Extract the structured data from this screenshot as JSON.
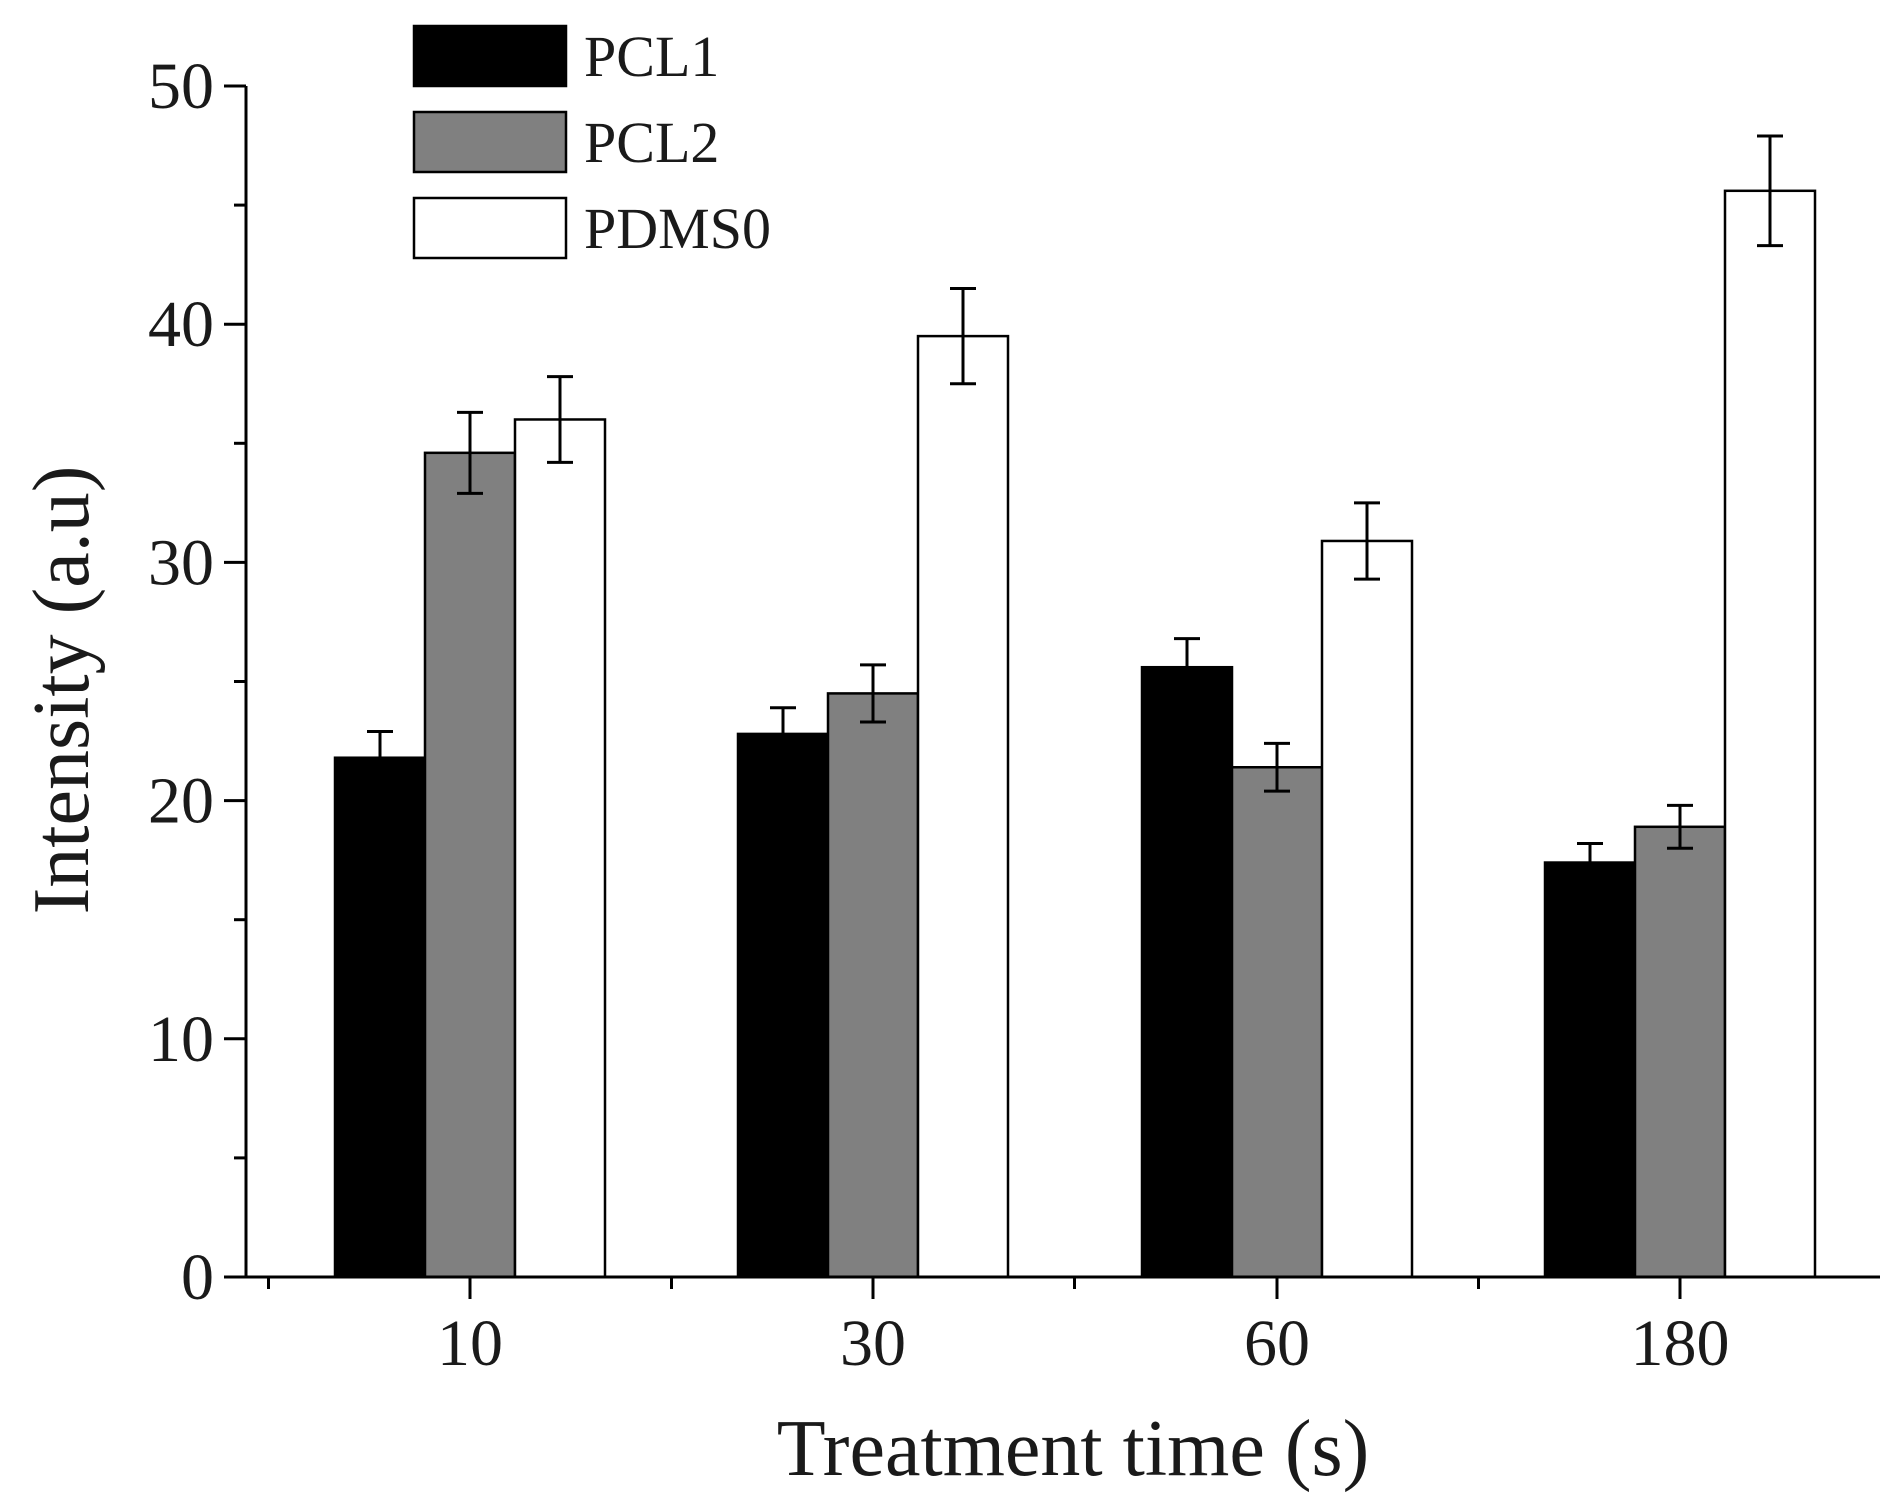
{
  "chart_data": {
    "type": "bar",
    "title": "",
    "xlabel": "Treatment time (s)",
    "ylabel": "Intensity (a.u)",
    "categories": [
      "10",
      "30",
      "60",
      "180"
    ],
    "ylim": [
      0,
      50
    ],
    "yticks": [
      "0",
      "10",
      "20",
      "30",
      "40",
      "50"
    ],
    "legend_position": "top-left",
    "grid": false,
    "error_bars": true,
    "series": [
      {
        "name": "PCL1",
        "color": "#000000",
        "values": [
          21.8,
          22.8,
          25.6,
          17.4
        ],
        "errors": [
          1.1,
          1.1,
          1.2,
          0.8
        ]
      },
      {
        "name": "PCL2",
        "color": "#808080",
        "values": [
          34.6,
          24.5,
          21.4,
          18.9
        ],
        "errors": [
          1.7,
          1.2,
          1.0,
          0.9
        ]
      },
      {
        "name": "PDMS0",
        "color": "#ffffff",
        "values": [
          36.0,
          39.5,
          30.9,
          45.6
        ],
        "errors": [
          1.8,
          2.0,
          1.6,
          2.3
        ]
      }
    ]
  }
}
